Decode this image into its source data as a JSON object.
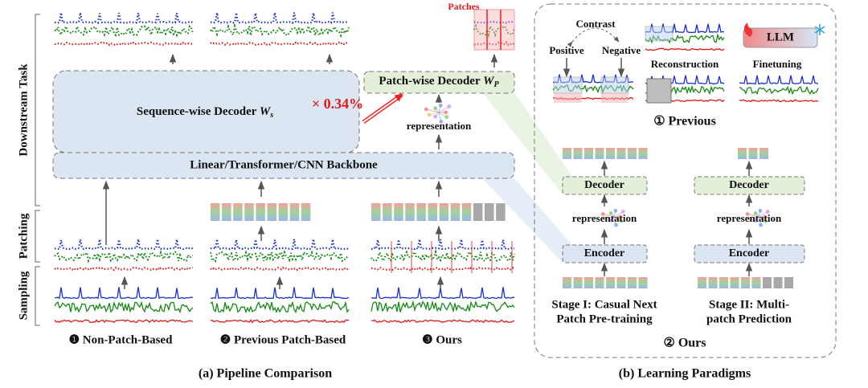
{
  "pipeline": {
    "side_labels": [
      "Downstream Task",
      "Patching",
      "Sampling"
    ],
    "patches_label": "Patches",
    "sequence_decoder": {
      "name": "Sequence-wise Decoder",
      "symbol": "W",
      "subscript": "s"
    },
    "ratio": "× 0.34%",
    "patch_decoder": {
      "name": "Patch-wise Decoder",
      "symbol": "W",
      "subscript": "P"
    },
    "representation": "representation",
    "backbone": "Linear/Transformer/CNN Backbone",
    "methods": [
      "❶ Non-Patch-Based",
      "❷ Previous Patch-Based",
      "❸ Ours"
    ],
    "caption": "(a) Pipeline Comparison"
  },
  "paradigms": {
    "previous": {
      "contrast": "Contrast",
      "positive": "Positive",
      "negative": "Negative",
      "reconstruction": "Reconstruction",
      "llm": "LLM",
      "finetuning": "Finetuning",
      "label": "① Previous"
    },
    "ours": {
      "stages": [
        {
          "decoder": "Decoder",
          "representation": "representation",
          "encoder": "Encoder",
          "caption": [
            "Stage I: Casual Next",
            "Patch Pre-training"
          ]
        },
        {
          "decoder": "Decoder",
          "representation": "representation",
          "encoder": "Encoder",
          "caption": [
            "Stage II: Multi-",
            "patch Prediction"
          ]
        }
      ],
      "label": "② Ours"
    },
    "caption": "(b) Learning Paradigms"
  }
}
